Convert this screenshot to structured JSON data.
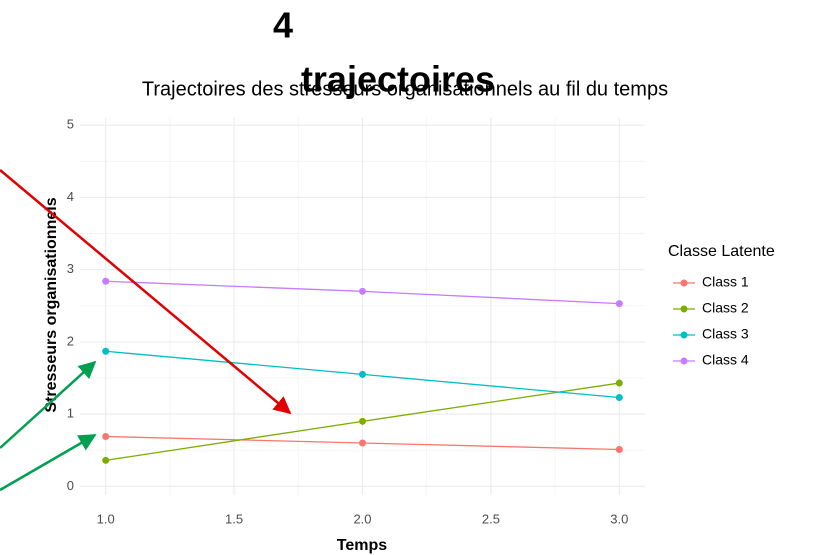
{
  "chart_data": {
    "type": "line",
    "title": "Trajectoires des stresseurs organisationnels au fil du temps",
    "annotation": [
      "4",
      "trajectoires"
    ],
    "x_label": "Temps",
    "y_label": "Stresseurs organisationnels",
    "legend_title": "Classe Latente",
    "legend": "right",
    "grid": true,
    "x": [
      1.0,
      2.0,
      3.0
    ],
    "xlim": [
      0.9,
      3.1
    ],
    "xticks": [
      {
        "value": 1,
        "label": "1.0"
      },
      {
        "value": 1.5,
        "label": "1.5"
      },
      {
        "value": 2,
        "label": "2.0"
      },
      {
        "value": 2.5,
        "label": "2.5"
      },
      {
        "value": 3,
        "label": "3.0"
      }
    ],
    "ylim": [
      -0.12,
      5.1
    ],
    "yticks": [
      0,
      1,
      2,
      3,
      4,
      5
    ],
    "series": [
      {
        "name": "Class 1",
        "color": "#F8766D",
        "values": [
          0.69,
          0.6,
          0.51
        ]
      },
      {
        "name": "Class 2",
        "color": "#7CAE00",
        "values": [
          0.36,
          0.9,
          1.43
        ]
      },
      {
        "name": "Class 3",
        "color": "#00BFC4",
        "values": [
          1.87,
          1.55,
          1.23
        ]
      },
      {
        "name": "Class 4",
        "color": "#C77CFF",
        "values": [
          2.84,
          2.7,
          2.53
        ]
      }
    ]
  }
}
